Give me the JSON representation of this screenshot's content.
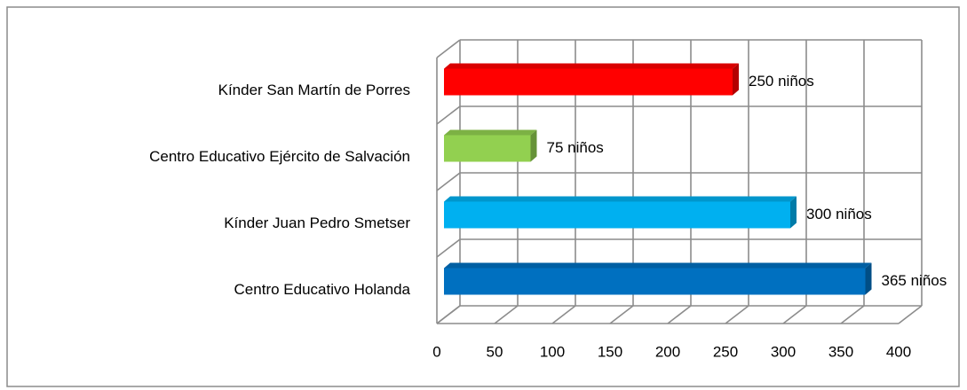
{
  "chart_data": {
    "type": "bar",
    "orientation": "horizontal",
    "categories": [
      "Kínder San Martín de Porres",
      "Centro Educativo Ejército de Salvación",
      "Kínder Juan Pedro Smetser",
      "Centro Educativo Holanda"
    ],
    "values": [
      250,
      75,
      300,
      365
    ],
    "value_labels": [
      "250 niños",
      "75 niños",
      "300 niños",
      "365 niños"
    ],
    "colors": [
      "#ff0000",
      "#92d050",
      "#00b0f0",
      "#0070c0"
    ],
    "xlim": [
      0,
      400
    ],
    "xticks": [
      0,
      50,
      100,
      150,
      200,
      250,
      300,
      350,
      400
    ],
    "grid": true
  }
}
